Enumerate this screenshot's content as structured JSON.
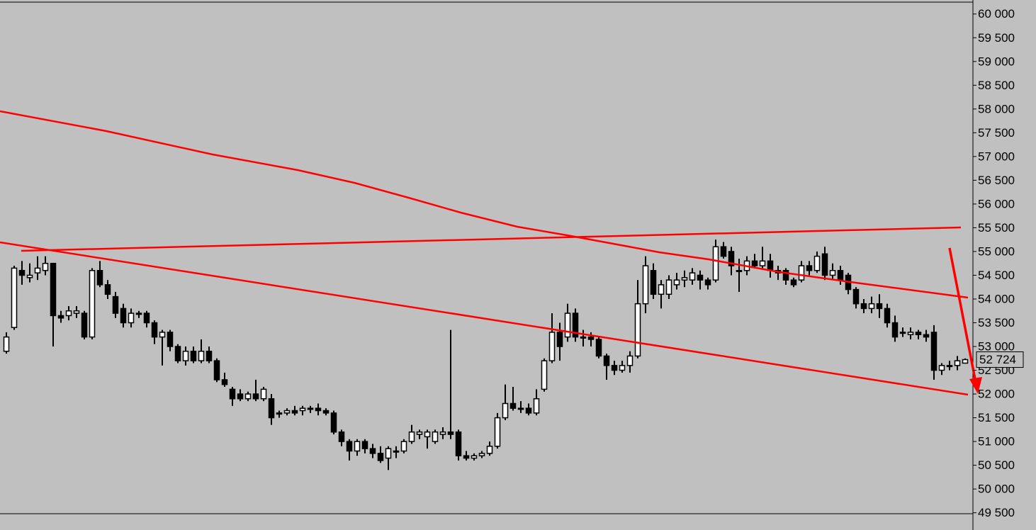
{
  "chart_data": {
    "type": "candlestick",
    "ylim": [
      49480,
      60250
    ],
    "yticks": [
      {
        "value": 49500,
        "label": "49 500"
      },
      {
        "value": 50000,
        "label": "50 000"
      },
      {
        "value": 50500,
        "label": "50 500"
      },
      {
        "value": 51000,
        "label": "51 000"
      },
      {
        "value": 51500,
        "label": "51 500"
      },
      {
        "value": 52000,
        "label": "52 000"
      },
      {
        "value": 52500,
        "label": "52 500"
      },
      {
        "value": 53000,
        "label": "53 000"
      },
      {
        "value": 53500,
        "label": "53 500"
      },
      {
        "value": 54000,
        "label": "54 000"
      },
      {
        "value": 54500,
        "label": "54 500"
      },
      {
        "value": 55000,
        "label": "55 000"
      },
      {
        "value": 55500,
        "label": "55 500"
      },
      {
        "value": 56000,
        "label": "56 000"
      },
      {
        "value": 56500,
        "label": "56 500"
      },
      {
        "value": 57000,
        "label": "57 000"
      },
      {
        "value": 57500,
        "label": "57 500"
      },
      {
        "value": 58000,
        "label": "58 000"
      },
      {
        "value": 58500,
        "label": "58 500"
      },
      {
        "value": 59000,
        "label": "59 000"
      },
      {
        "value": 59500,
        "label": "59 500"
      },
      {
        "value": 60000,
        "label": "60 000"
      }
    ],
    "last_price": {
      "value": 52724,
      "label": "52 724"
    },
    "up_color": "#ffffff",
    "down_color": "#000000",
    "open": [
      52900,
      53400,
      54600,
      54450,
      54550,
      54600,
      54750,
      53650,
      53650,
      53700,
      53700,
      53200,
      54600,
      54300,
      54050,
      53800,
      53500,
      53700,
      53700,
      53500,
      53200,
      53300,
      53000,
      52700,
      52900,
      52700,
      52900,
      52700,
      52300,
      52100,
      52000,
      51900,
      52000,
      51900,
      51900,
      51600,
      51600,
      51650,
      51650,
      51700,
      51700,
      51650,
      51600,
      51200,
      51000,
      50800,
      51000,
      50850,
      50750,
      50650,
      50800,
      50800,
      51000,
      51150,
      51100,
      51000,
      51150,
      51200,
      51200,
      50700,
      50650,
      50700,
      50750,
      50900,
      51500,
      51800,
      51700,
      51700,
      51600,
      52100,
      52700,
      53300,
      53200,
      53700,
      53200,
      53200,
      53150,
      52800,
      52600,
      52500,
      52600,
      52800,
      53900,
      54600,
      54100,
      54100,
      54300,
      54400,
      54400,
      54500,
      54400,
      54400,
      55100,
      55000,
      54600,
      54600,
      54800,
      54700,
      54800,
      54600,
      54600,
      54400,
      54400,
      54700,
      54600,
      54950,
      54500,
      54600,
      54500,
      54200,
      53900,
      53800,
      53900,
      53800,
      53500,
      53300,
      53250,
      53300,
      53250,
      53300,
      52500,
      52600,
      52600,
      52650
    ],
    "high": [
      53300,
      54700,
      54800,
      54750,
      54900,
      54900,
      54750,
      53750,
      53850,
      53850,
      53750,
      54650,
      54800,
      54400,
      54150,
      53900,
      53800,
      53750,
      53750,
      53550,
      53350,
      53350,
      53050,
      53000,
      53000,
      53150,
      53000,
      52750,
      52450,
      52150,
      52100,
      52050,
      52300,
      52150,
      52000,
      51650,
      51700,
      51750,
      51750,
      51750,
      51800,
      51700,
      51650,
      51250,
      51050,
      51050,
      51050,
      50950,
      50900,
      50900,
      50900,
      51050,
      51350,
      51250,
      51250,
      51250,
      51300,
      53350,
      51250,
      50800,
      50750,
      50800,
      51000,
      51600,
      52200,
      52150,
      51850,
      51800,
      52100,
      52750,
      53700,
      53500,
      53900,
      53800,
      53350,
      53300,
      53200,
      52850,
      52700,
      52700,
      52900,
      54400,
      54900,
      54750,
      54400,
      54500,
      54550,
      54600,
      54650,
      54600,
      54450,
      55250,
      55200,
      55100,
      54850,
      54900,
      54950,
      55100,
      54950,
      54700,
      54650,
      54450,
      54800,
      54800,
      55000,
      55100,
      54750,
      54700,
      54550,
      54250,
      54000,
      54050,
      54100,
      53900,
      53650,
      53400,
      53400,
      53350,
      53350,
      53450,
      52650,
      52700,
      52800,
      52750
    ],
    "low": [
      52850,
      53350,
      54300,
      54350,
      54400,
      54500,
      53000,
      53500,
      53550,
      53600,
      53150,
      53150,
      54250,
      54000,
      53600,
      53400,
      53400,
      53600,
      53400,
      53050,
      52600,
      52900,
      52650,
      52600,
      52650,
      52650,
      52650,
      52250,
      52150,
      51750,
      51850,
      51850,
      51850,
      51850,
      51350,
      51500,
      51550,
      51550,
      51550,
      51600,
      51550,
      51550,
      51150,
      50900,
      50600,
      50700,
      50750,
      50650,
      50550,
      50400,
      50650,
      50750,
      50950,
      51050,
      50850,
      50950,
      51050,
      51050,
      50600,
      50600,
      50600,
      50650,
      50700,
      50850,
      51450,
      51650,
      51600,
      51550,
      51550,
      52050,
      52650,
      52700,
      53100,
      53100,
      53000,
      53000,
      52750,
      52300,
      52400,
      52450,
      52450,
      52750,
      53700,
      54000,
      53800,
      54000,
      54200,
      54250,
      54300,
      54200,
      54200,
      54350,
      54850,
      54500,
      54150,
      54500,
      54650,
      54650,
      54450,
      54400,
      54300,
      54250,
      54350,
      54500,
      54550,
      54400,
      54400,
      54300,
      54100,
      53800,
      53700,
      53700,
      53600,
      53400,
      53100,
      53200,
      53150,
      53150,
      53100,
      52300,
      52400,
      52500,
      52500,
      52650
    ],
    "close": [
      53200,
      54650,
      54500,
      54500,
      54650,
      54750,
      53650,
      53600,
      53750,
      53750,
      53200,
      54600,
      54300,
      54100,
      53700,
      53500,
      53700,
      53700,
      53500,
      53200,
      53300,
      53000,
      52700,
      52900,
      52700,
      52900,
      52700,
      52300,
      52200,
      51900,
      51900,
      52000,
      51900,
      52100,
      51500,
      51600,
      51650,
      51600,
      51700,
      51700,
      51650,
      51600,
      51200,
      51000,
      50800,
      51000,
      50850,
      50750,
      50600,
      50850,
      50800,
      51000,
      51200,
      51200,
      51200,
      51200,
      51200,
      51150,
      50700,
      50650,
      50700,
      50750,
      50900,
      51500,
      51800,
      51700,
      51700,
      51600,
      51900,
      52700,
      53300,
      53000,
      53700,
      53200,
      53200,
      53150,
      52800,
      52600,
      52500,
      52600,
      52800,
      53900,
      54700,
      54100,
      54300,
      54400,
      54400,
      54450,
      54550,
      54400,
      54300,
      55100,
      54900,
      54700,
      54600,
      54800,
      54700,
      54800,
      54600,
      54550,
      54400,
      54300,
      54700,
      54600,
      54900,
      54500,
      54600,
      54400,
      54200,
      53900,
      53800,
      53900,
      53800,
      53500,
      53200,
      53300,
      53300,
      53250,
      53200,
      52500,
      52600,
      52600,
      52700,
      52724
    ]
  }
}
